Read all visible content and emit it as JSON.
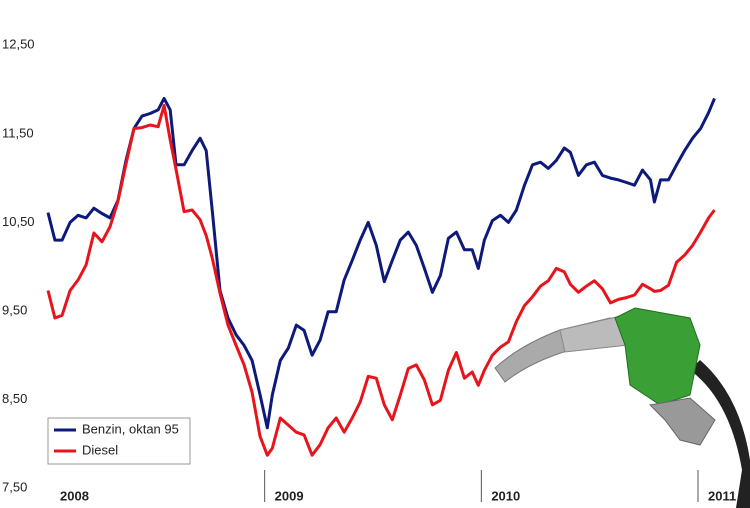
{
  "chart_data": {
    "type": "line",
    "x": [
      2008,
      2008.032,
      2008.065,
      2008.102,
      2008.139,
      2008.176,
      2008.212,
      2008.249,
      2008.286,
      2008.323,
      2008.36,
      2008.397,
      2008.434,
      2008.471,
      2008.508,
      2008.536,
      2008.564,
      2008.591,
      2008.628,
      2008.665,
      2008.702,
      2008.73,
      2008.758,
      2008.794,
      2008.831,
      2008.868,
      2008.905,
      2008.942,
      2008.979,
      2009.012,
      2009.035,
      2009.072,
      2009.109,
      2009.146,
      2009.182,
      2009.219,
      2009.256,
      2009.293,
      2009.33,
      2009.367,
      2009.404,
      2009.441,
      2009.478,
      2009.515,
      2009.552,
      2009.589,
      2009.626,
      2009.663,
      2009.7,
      2009.737,
      2009.774,
      2009.811,
      2009.848,
      2009.885,
      2009.922,
      2009.958,
      2009.986,
      2010.014,
      2010.051,
      2010.088,
      2010.125,
      2010.162,
      2010.199,
      2010.236,
      2010.273,
      2010.309,
      2010.346,
      2010.383,
      2010.411,
      2010.448,
      2010.485,
      2010.522,
      2010.559,
      2010.596,
      2010.633,
      2010.67,
      2010.707,
      2010.744,
      2010.781,
      2010.799,
      2010.827,
      2010.864,
      2010.901,
      2010.938,
      2010.975,
      2011.012,
      2011.049,
      2011.076
    ],
    "series": [
      {
        "name": "Benzin, oktan 95",
        "color": "#0d1a7a",
        "values": [
          10.61,
          10.3,
          10.3,
          10.5,
          10.58,
          10.55,
          10.66,
          10.6,
          10.55,
          10.75,
          11.2,
          11.56,
          11.7,
          11.73,
          11.77,
          11.9,
          11.77,
          11.15,
          11.15,
          11.31,
          11.45,
          11.31,
          10.64,
          9.73,
          9.42,
          9.23,
          9.11,
          8.94,
          8.55,
          8.18,
          8.55,
          8.94,
          9.08,
          9.34,
          9.28,
          9.0,
          9.17,
          9.49,
          9.49,
          9.85,
          10.07,
          10.3,
          10.5,
          10.24,
          9.83,
          10.07,
          10.3,
          10.39,
          10.24,
          9.98,
          9.71,
          9.9,
          10.32,
          10.39,
          10.19,
          10.19,
          9.98,
          10.3,
          10.52,
          10.58,
          10.5,
          10.64,
          10.92,
          11.15,
          11.18,
          11.11,
          11.2,
          11.34,
          11.29,
          11.03,
          11.15,
          11.18,
          11.03,
          11.0,
          10.98,
          10.95,
          10.92,
          11.09,
          10.98,
          10.73,
          10.98,
          10.98,
          11.15,
          11.31,
          11.45,
          11.56,
          11.74,
          11.9
        ]
      },
      {
        "name": "Diesel",
        "color": "#e8141c",
        "values": [
          9.73,
          9.42,
          9.45,
          9.73,
          9.85,
          10.02,
          10.38,
          10.28,
          10.45,
          10.74,
          11.16,
          11.56,
          11.57,
          11.6,
          11.58,
          11.82,
          11.43,
          11.1,
          10.62,
          10.64,
          10.53,
          10.35,
          10.1,
          9.7,
          9.34,
          9.11,
          8.89,
          8.58,
          8.08,
          7.87,
          7.95,
          8.29,
          8.21,
          8.13,
          8.1,
          7.87,
          7.99,
          8.18,
          8.29,
          8.13,
          8.29,
          8.47,
          8.76,
          8.74,
          8.44,
          8.27,
          8.55,
          8.85,
          8.89,
          8.72,
          8.44,
          8.49,
          8.83,
          9.03,
          8.74,
          8.81,
          8.66,
          8.83,
          9.0,
          9.09,
          9.15,
          9.38,
          9.56,
          9.66,
          9.78,
          9.84,
          9.98,
          9.94,
          9.8,
          9.71,
          9.78,
          9.84,
          9.75,
          9.59,
          9.63,
          9.65,
          9.68,
          9.8,
          9.75,
          9.72,
          9.73,
          9.79,
          10.05,
          10.13,
          10.24,
          10.39,
          10.55,
          10.64
        ]
      }
    ],
    "xlim": [
      2008,
      2011.24
    ],
    "xticks": [
      2008,
      2009,
      2010,
      2011
    ],
    "ylim": [
      7.5,
      13
    ],
    "yticks": [
      {
        "value": 7.5,
        "label": "7,50"
      },
      {
        "value": 8.5,
        "label": "8,50"
      },
      {
        "value": 9.5,
        "label": "9,50"
      },
      {
        "value": 10.5,
        "label": "10,50"
      },
      {
        "value": 11.5,
        "label": "11,50"
      },
      {
        "value": 12.5,
        "label": "12,50"
      }
    ],
    "legend": "lower left"
  }
}
